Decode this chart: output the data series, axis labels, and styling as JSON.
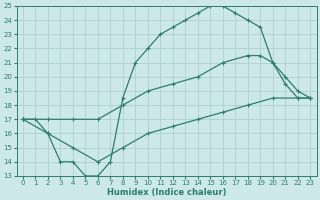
{
  "xlabel": "Humidex (Indice chaleur)",
  "bg_color": "#cce8e8",
  "line_color": "#2e7d6e",
  "grid_color": "#aacccc",
  "xlim": [
    -0.5,
    23.5
  ],
  "ylim": [
    13,
    25
  ],
  "xticks": [
    0,
    1,
    2,
    3,
    4,
    5,
    6,
    7,
    8,
    9,
    10,
    11,
    12,
    13,
    14,
    15,
    16,
    17,
    18,
    19,
    20,
    21,
    22,
    23
  ],
  "yticks": [
    13,
    14,
    15,
    16,
    17,
    18,
    19,
    20,
    21,
    22,
    23,
    24,
    25
  ],
  "line1_x": [
    0,
    1,
    2,
    3,
    4,
    5,
    6,
    7,
    8,
    9,
    10,
    11,
    12,
    13,
    14,
    15,
    16,
    17,
    18,
    19,
    20,
    21,
    22,
    23
  ],
  "line1_y": [
    17,
    17,
    16,
    14,
    14,
    13,
    13,
    14,
    18.5,
    21,
    22,
    23,
    23.5,
    24,
    24.5,
    25,
    25,
    24.5,
    24,
    23.5,
    21,
    19.5,
    18.5,
    18.5
  ],
  "line2_x": [
    0,
    2,
    4,
    6,
    8,
    10,
    12,
    14,
    16,
    18,
    19,
    20,
    21,
    22,
    23
  ],
  "line2_y": [
    17,
    17,
    17,
    17,
    18,
    19,
    19.5,
    20,
    21,
    21.5,
    21.5,
    21,
    20,
    19,
    18.5
  ],
  "line3_x": [
    0,
    2,
    4,
    6,
    8,
    10,
    12,
    14,
    16,
    18,
    20,
    22,
    23
  ],
  "line3_y": [
    17,
    16,
    15,
    14,
    15,
    16,
    16.5,
    17,
    17.5,
    18,
    18.5,
    18.5,
    18.5
  ]
}
